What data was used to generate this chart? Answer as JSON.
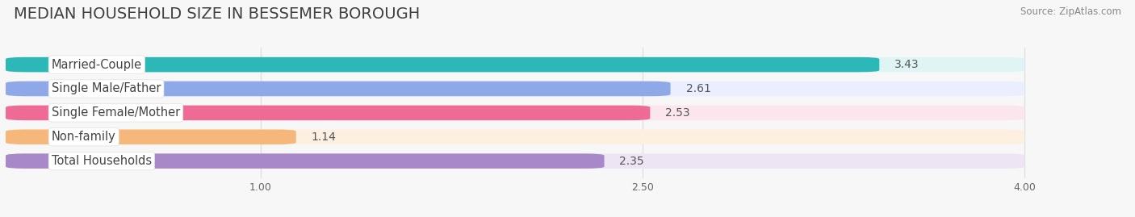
{
  "title": "MEDIAN HOUSEHOLD SIZE IN BESSEMER BOROUGH",
  "source": "Source: ZipAtlas.com",
  "categories": [
    "Married-Couple",
    "Single Male/Father",
    "Single Female/Mother",
    "Non-family",
    "Total Households"
  ],
  "values": [
    3.43,
    2.61,
    2.53,
    1.14,
    2.35
  ],
  "bar_colors": [
    "#2db8b8",
    "#8fa8e8",
    "#ee6b96",
    "#f5b87a",
    "#a888c8"
  ],
  "bar_bg_colors": [
    "#dff4f4",
    "#eaeeff",
    "#fce6ee",
    "#fdf0e0",
    "#ede4f4"
  ],
  "label_bg_color": "#ffffff",
  "xlim": [
    0,
    4.3
  ],
  "xmin": 0,
  "xmax": 4.0,
  "xticks": [
    1.0,
    2.5,
    4.0
  ],
  "title_fontsize": 14,
  "label_fontsize": 10.5,
  "value_fontsize": 10,
  "bar_height": 0.62,
  "background_color": "#f7f7f7",
  "grid_color": "#e0e0e0"
}
